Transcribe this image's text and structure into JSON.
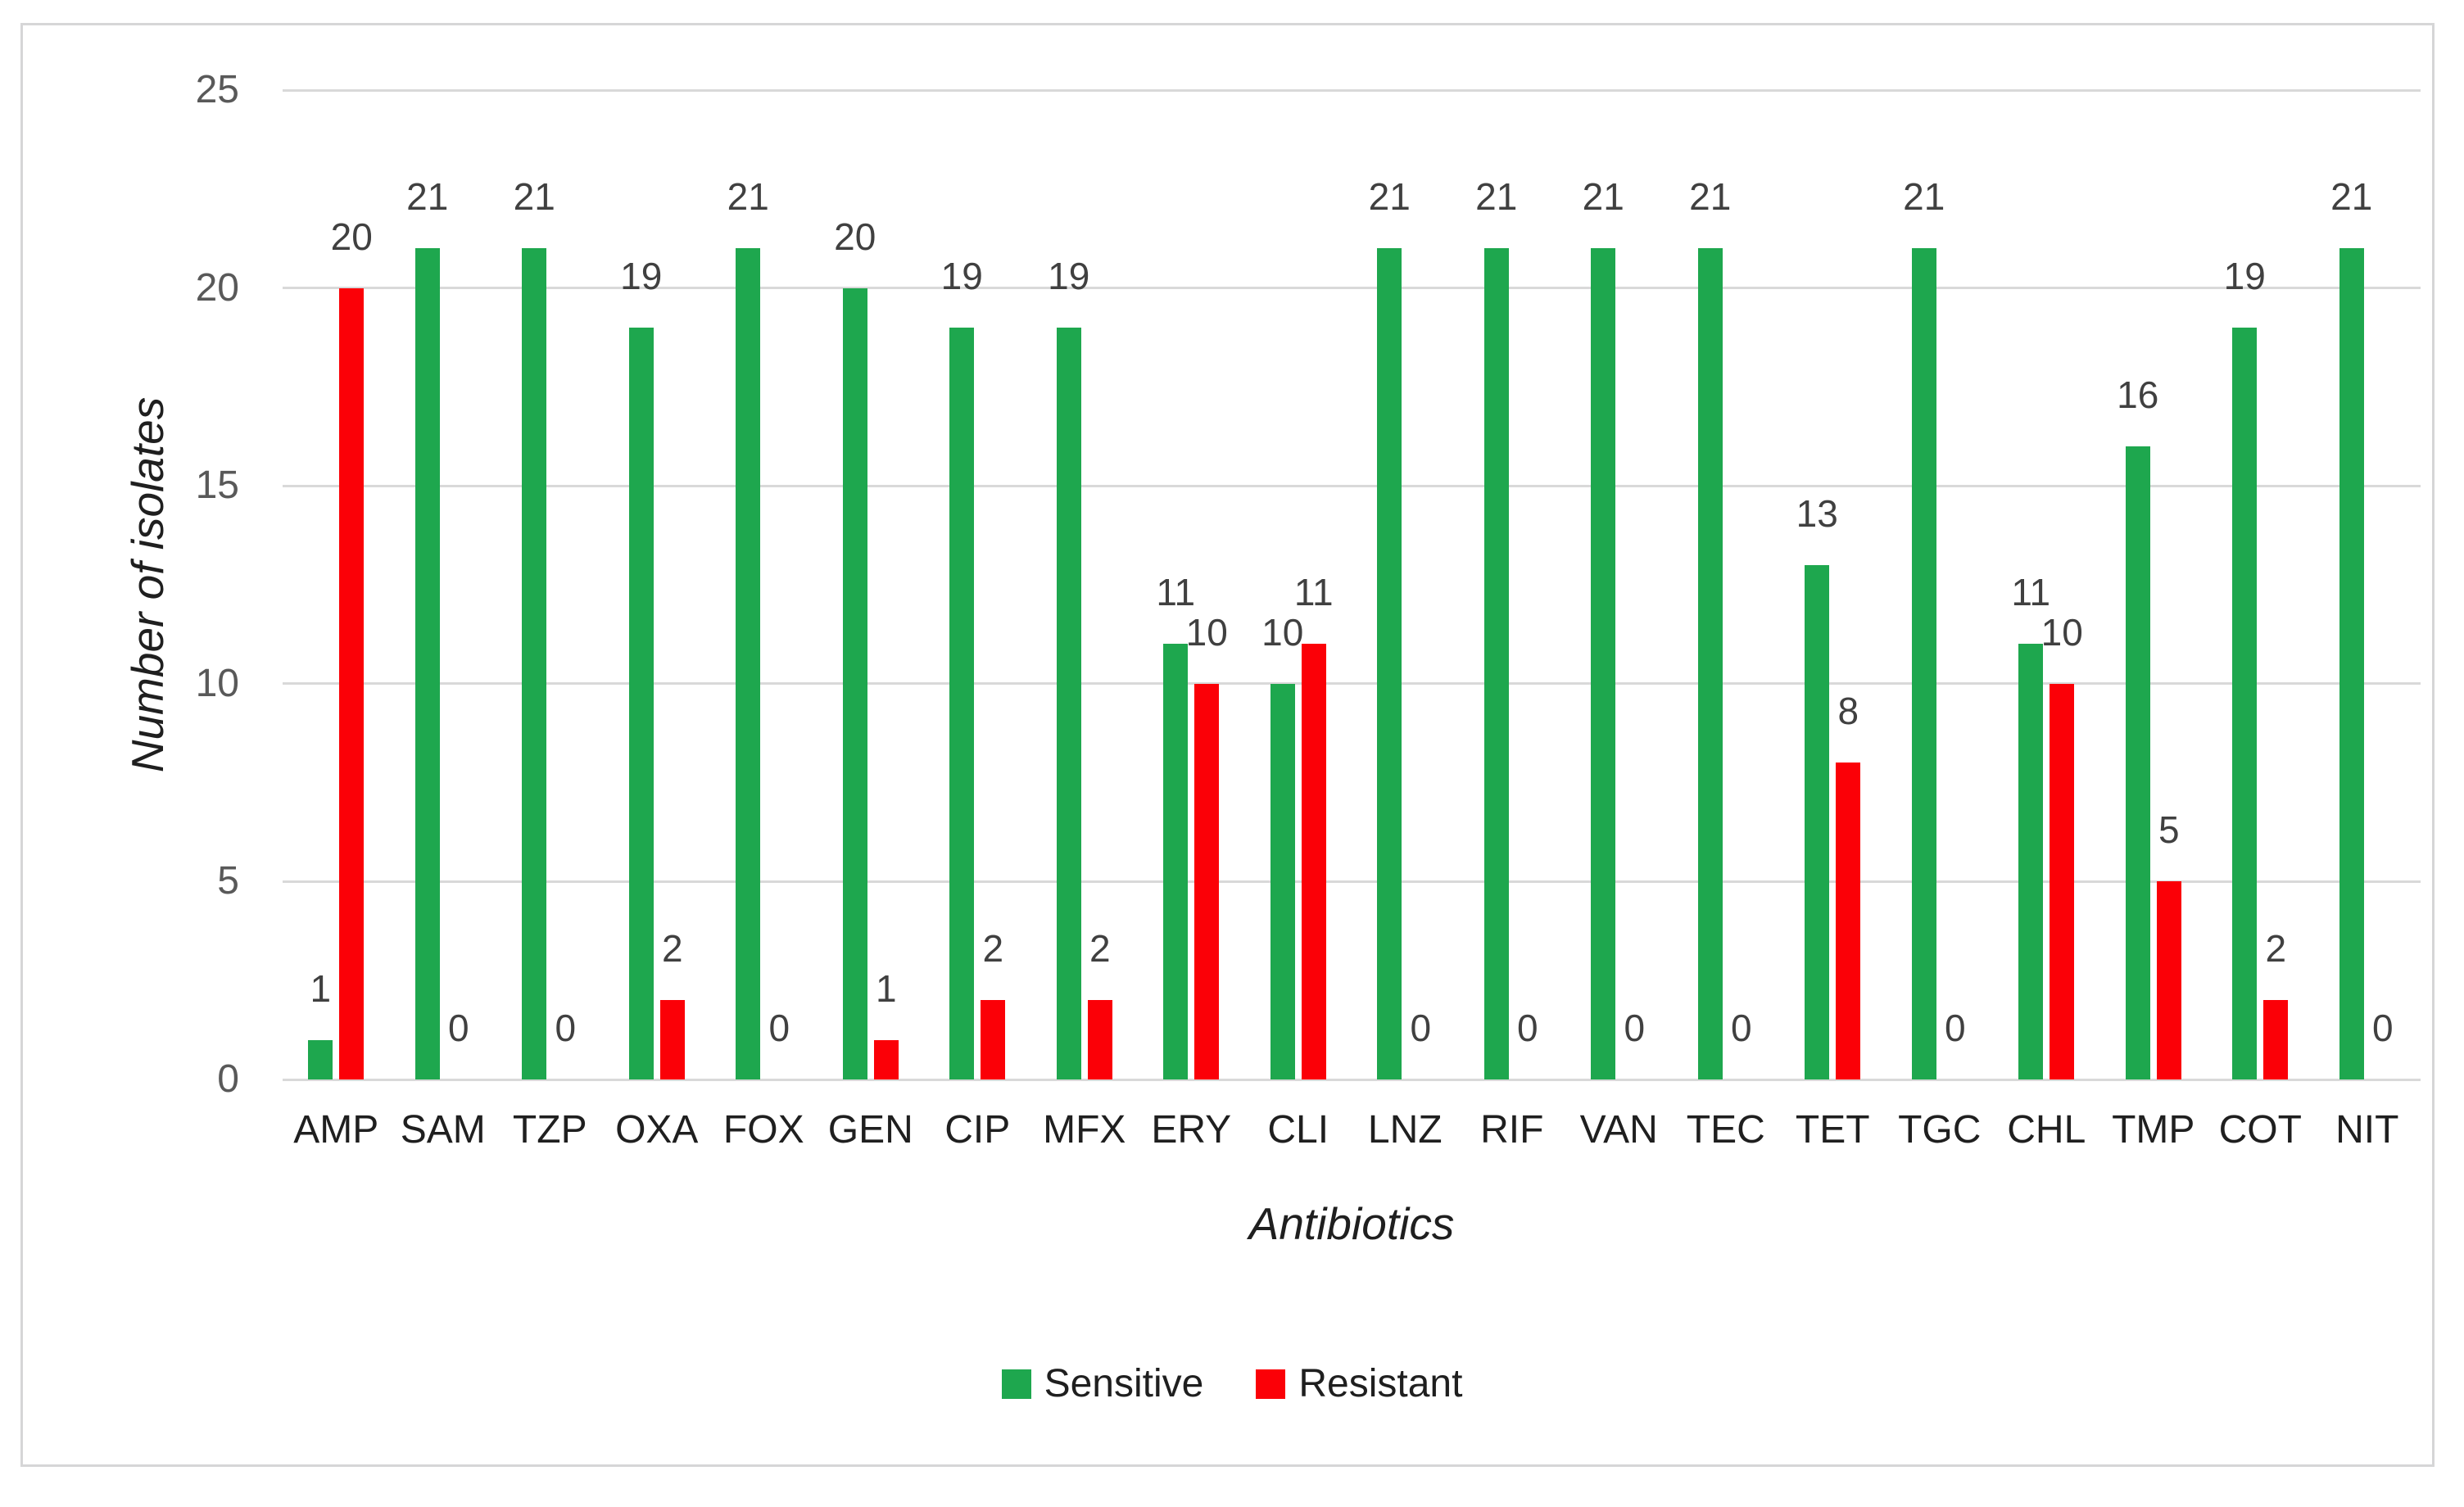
{
  "chart_data": {
    "type": "bar",
    "title": "",
    "xlabel": "Antibiotics",
    "ylabel": "Number of isolates",
    "ylim": [
      0,
      25
    ],
    "yticks": [
      0,
      5,
      10,
      15,
      20,
      25
    ],
    "grid": true,
    "legend_position": "bottom",
    "categories": [
      "AMP",
      "SAM",
      "TZP",
      "OXA",
      "FOX",
      "GEN",
      "CIP",
      "MFX",
      "ERY",
      "CLI",
      "LNZ",
      "RIF",
      "VAN",
      "TEC",
      "TET",
      "TGC",
      "CHL",
      "TMP",
      "COT",
      "NIT"
    ],
    "series": [
      {
        "name": "Sensitive",
        "color": "#1ea74e",
        "values": [
          1,
          21,
          21,
          19,
          21,
          20,
          19,
          19,
          11,
          10,
          21,
          21,
          21,
          21,
          13,
          21,
          11,
          16,
          19,
          21
        ]
      },
      {
        "name": "Resistant",
        "color": "#fb0007",
        "values": [
          20,
          0,
          0,
          2,
          0,
          1,
          2,
          2,
          10,
          11,
          0,
          0,
          0,
          0,
          8,
          0,
          10,
          5,
          2,
          0
        ]
      }
    ],
    "colors": {
      "gridline": "#d9d9d9",
      "tick_label": "#595959",
      "data_label": "#404040",
      "axis_text": "#1f1f1f",
      "frame_border": "#d6d6d7",
      "background": "#ffffff"
    }
  }
}
